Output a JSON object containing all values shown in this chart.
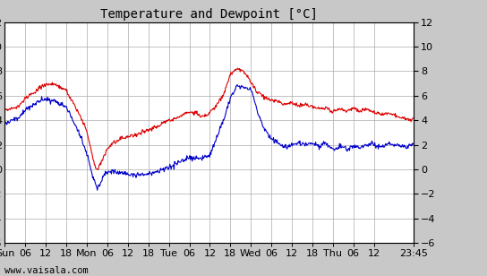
{
  "title": "Temperature and Dewpoint [°C]",
  "ylim": [
    -6,
    12
  ],
  "yticks": [
    -6,
    -4,
    -2,
    0,
    2,
    4,
    6,
    8,
    10,
    12
  ],
  "x_tick_positions": [
    0,
    6,
    12,
    18,
    24,
    30,
    36,
    42,
    48,
    54,
    60,
    66,
    72,
    78,
    84,
    90,
    96,
    102,
    108,
    119.75
  ],
  "x_tick_labels": [
    "Sun",
    "06",
    "12",
    "18",
    "Mon",
    "06",
    "12",
    "18",
    "Tue",
    "06",
    "12",
    "18",
    "Wed",
    "06",
    "12",
    "18",
    "Thu",
    "06",
    "12",
    "23:45"
  ],
  "watermark": "www.vaisala.com",
  "bg_color": "#c8c8c8",
  "plot_bg_color": "#ffffff",
  "grid_color": "#aaaaaa",
  "temp_color": "#dd0000",
  "dewp_color": "#0000cc",
  "line_width": 0.8,
  "title_fontsize": 10,
  "tick_fontsize": 8,
  "watermark_fontsize": 7.5,
  "temp_pts": [
    [
      0,
      4.5
    ],
    [
      4,
      4.8
    ],
    [
      6,
      5.5
    ],
    [
      10,
      6.3
    ],
    [
      12,
      6.7
    ],
    [
      15,
      6.6
    ],
    [
      18,
      6.1
    ],
    [
      21,
      4.5
    ],
    [
      24,
      2.8
    ],
    [
      26,
      0.5
    ],
    [
      27,
      -0.3
    ],
    [
      28,
      0.2
    ],
    [
      29,
      0.8
    ],
    [
      30,
      1.5
    ],
    [
      32,
      2.0
    ],
    [
      34,
      2.3
    ],
    [
      36,
      2.5
    ],
    [
      38,
      2.6
    ],
    [
      40,
      2.8
    ],
    [
      42,
      3.0
    ],
    [
      44,
      3.2
    ],
    [
      46,
      3.5
    ],
    [
      48,
      3.8
    ],
    [
      50,
      4.0
    ],
    [
      52,
      4.3
    ],
    [
      54,
      4.5
    ],
    [
      56,
      4.4
    ],
    [
      58,
      4.2
    ],
    [
      60,
      4.5
    ],
    [
      62,
      5.2
    ],
    [
      64,
      6.0
    ],
    [
      66,
      7.8
    ],
    [
      68,
      8.3
    ],
    [
      70,
      8.0
    ],
    [
      72,
      7.2
    ],
    [
      74,
      6.5
    ],
    [
      76,
      6.0
    ],
    [
      78,
      5.8
    ],
    [
      80,
      5.8
    ],
    [
      82,
      5.5
    ],
    [
      84,
      5.7
    ],
    [
      86,
      5.4
    ],
    [
      88,
      5.6
    ],
    [
      90,
      5.5
    ],
    [
      92,
      5.3
    ],
    [
      94,
      5.5
    ],
    [
      96,
      5.2
    ],
    [
      98,
      5.4
    ],
    [
      100,
      5.1
    ],
    [
      102,
      5.3
    ],
    [
      104,
      5.0
    ],
    [
      106,
      5.1
    ],
    [
      108,
      4.9
    ],
    [
      110,
      4.7
    ],
    [
      112,
      4.8
    ],
    [
      114,
      4.6
    ],
    [
      116,
      4.5
    ],
    [
      118,
      4.4
    ],
    [
      119.75,
      4.3
    ]
  ],
  "dewp_pts": [
    [
      0,
      3.5
    ],
    [
      4,
      3.8
    ],
    [
      6,
      4.5
    ],
    [
      10,
      5.2
    ],
    [
      12,
      5.3
    ],
    [
      15,
      5.1
    ],
    [
      18,
      4.8
    ],
    [
      21,
      3.2
    ],
    [
      24,
      1.2
    ],
    [
      26,
      -0.8
    ],
    [
      27,
      -1.8
    ],
    [
      28,
      -1.2
    ],
    [
      29,
      -0.5
    ],
    [
      30,
      -0.3
    ],
    [
      32,
      -0.2
    ],
    [
      34,
      -0.3
    ],
    [
      36,
      -0.5
    ],
    [
      38,
      -0.4
    ],
    [
      40,
      -0.3
    ],
    [
      42,
      -0.2
    ],
    [
      44,
      0.0
    ],
    [
      46,
      0.1
    ],
    [
      48,
      0.3
    ],
    [
      50,
      0.5
    ],
    [
      52,
      0.7
    ],
    [
      54,
      0.9
    ],
    [
      56,
      0.8
    ],
    [
      58,
      0.8
    ],
    [
      60,
      1.0
    ],
    [
      62,
      2.5
    ],
    [
      64,
      4.0
    ],
    [
      66,
      5.8
    ],
    [
      68,
      6.8
    ],
    [
      70,
      6.6
    ],
    [
      72,
      6.4
    ],
    [
      74,
      4.5
    ],
    [
      76,
      3.2
    ],
    [
      78,
      2.5
    ],
    [
      80,
      2.2
    ],
    [
      82,
      1.8
    ],
    [
      84,
      2.0
    ],
    [
      86,
      2.3
    ],
    [
      88,
      2.2
    ],
    [
      90,
      2.4
    ],
    [
      92,
      2.2
    ],
    [
      94,
      2.5
    ],
    [
      96,
      2.0
    ],
    [
      98,
      2.3
    ],
    [
      100,
      2.0
    ],
    [
      102,
      2.2
    ],
    [
      104,
      2.1
    ],
    [
      106,
      2.3
    ],
    [
      108,
      2.2
    ],
    [
      110,
      2.0
    ],
    [
      112,
      2.2
    ],
    [
      114,
      2.1
    ],
    [
      116,
      2.0
    ],
    [
      118,
      2.0
    ],
    [
      119.75,
      2.0
    ]
  ]
}
